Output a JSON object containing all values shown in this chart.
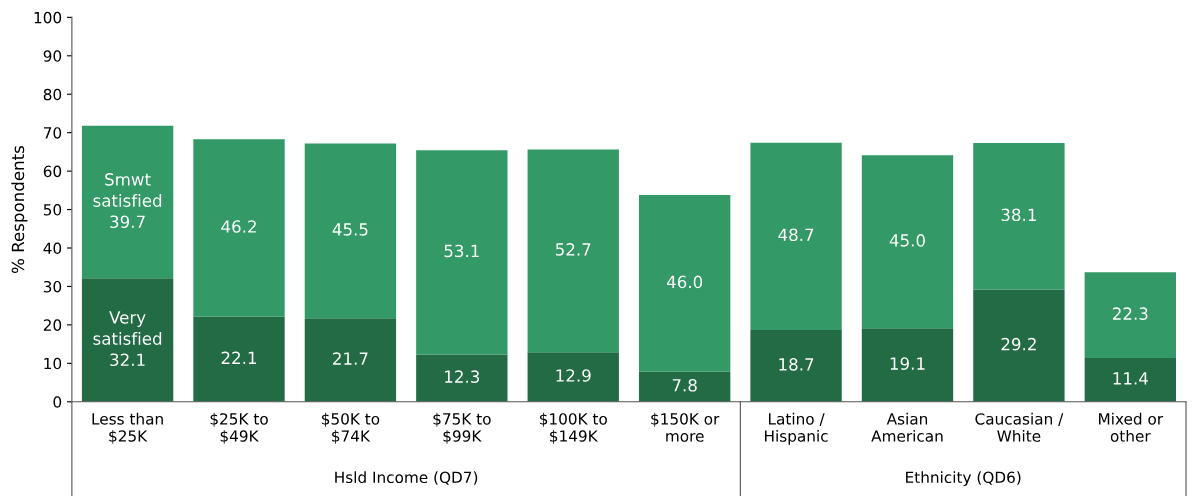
{
  "chart_data": {
    "type": "bar",
    "stacked": true,
    "ylabel": "% Respondents",
    "categories": [
      "Less than\n$25K",
      "$25K to\n$49K",
      "$50K to\n$74K",
      "$75K to\n$99K",
      "$100K to\n$149K",
      "$150K or\nmore",
      "Latino /\nHispanic",
      "Asian\nAmerican",
      "Caucasian /\nWhite",
      "Mixed or\nother"
    ],
    "series": [
      {
        "name": "Very satisfied",
        "color": "#236b45",
        "values": [
          32.1,
          22.1,
          21.7,
          12.3,
          12.9,
          7.8,
          18.7,
          19.1,
          29.2,
          11.4
        ],
        "value_labels": [
          "32.1",
          "22.1",
          "21.7",
          "12.3",
          "12.9",
          "7.8",
          "18.7",
          "19.1",
          "29.2",
          "11.4"
        ]
      },
      {
        "name": "Smwt satisfied",
        "color": "#339966",
        "values": [
          39.7,
          46.2,
          45.5,
          53.1,
          52.7,
          46.0,
          48.7,
          45.0,
          38.1,
          22.3
        ],
        "value_labels": [
          "39.7",
          "46.2",
          "45.5",
          "53.1",
          "52.7",
          "46.0",
          "48.7",
          "45.0",
          "38.1",
          "22.3"
        ]
      }
    ],
    "ylim": [
      0,
      100
    ],
    "yticks": [
      0,
      10,
      20,
      30,
      40,
      50,
      60,
      70,
      80,
      90,
      100
    ],
    "annotations": [
      "Hsld Income (QD7)",
      "Ethnicity (QD6)"
    ]
  }
}
